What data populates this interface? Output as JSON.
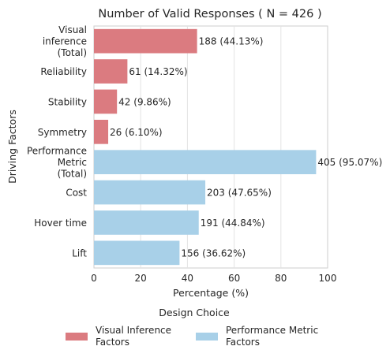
{
  "chart_data": {
    "type": "bar",
    "orientation": "horizontal",
    "title": "Number of Valid Responses ( N = 426 )",
    "xlabel": "Percentage (%)",
    "ylabel": "Driving Factors",
    "xlim": [
      0,
      100
    ],
    "xticks": [
      0,
      20,
      40,
      60,
      80,
      100
    ],
    "grid": "vertical",
    "categories": [
      [
        "Visual",
        "inference",
        "(Total)"
      ],
      [
        "Reliability"
      ],
      [
        "Stability"
      ],
      [
        "Symmetry"
      ],
      [
        "Performance",
        "Metric",
        "(Total)"
      ],
      [
        "Cost"
      ],
      [
        "Hover time"
      ],
      [
        "Lift"
      ]
    ],
    "values": [
      44.13,
      14.32,
      9.86,
      6.1,
      95.07,
      47.65,
      44.84,
      36.62
    ],
    "labels": [
      "188 (44.13%)",
      "61 (14.32%)",
      "42 (9.86%)",
      "26 (6.10%)",
      "405 (95.07%)",
      "203 (47.65%)",
      "191 (44.84%)",
      "156 (36.62%)"
    ],
    "group": [
      0,
      0,
      0,
      0,
      1,
      1,
      1,
      1
    ],
    "legend": {
      "title": "Design Choice",
      "placement": "bottom",
      "entries": [
        {
          "label": [
            "Visual Inference",
            "Factors"
          ],
          "color": "#db7b80"
        },
        {
          "label": [
            "Performance Metric",
            "Factors"
          ],
          "color": "#a8d0e8"
        }
      ]
    }
  }
}
